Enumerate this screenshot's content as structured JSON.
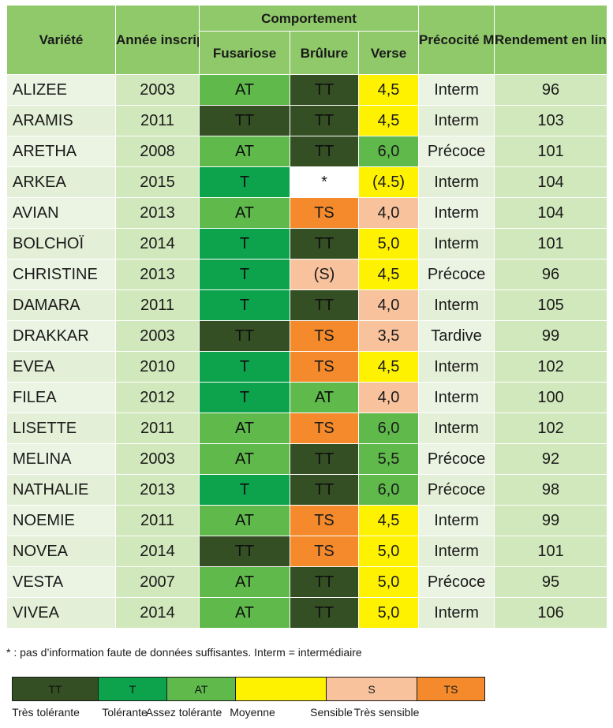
{
  "headers": {
    "variete": "Variété",
    "annee": "Année inscription",
    "comportement": "Comportement",
    "fusariose": "Fusariose",
    "brulure": "Brûlure",
    "verse": "Verse",
    "precocite": "Précocité Maturité",
    "rendement": "Rendement en lin teillé (% moyenne)"
  },
  "rows": [
    {
      "name": "ALIZEE",
      "year": "2003",
      "fus": "AT",
      "fus_c": "AT",
      "bru": "TT",
      "bru_c": "TT",
      "verse": "4,5",
      "verse_c": "M",
      "mat": "Interm",
      "yield": "96"
    },
    {
      "name": "ARAMIS",
      "year": "2011",
      "fus": "TT",
      "fus_c": "TT",
      "bru": "TT",
      "bru_c": "TT",
      "verse": "4,5",
      "verse_c": "M",
      "mat": "Interm",
      "yield": "103"
    },
    {
      "name": "ARETHA",
      "year": "2008",
      "fus": "AT",
      "fus_c": "AT",
      "bru": "TT",
      "bru_c": "TT",
      "verse": "6,0",
      "verse_c": "V",
      "mat": "Précoce",
      "yield": "101"
    },
    {
      "name": "ARKEA",
      "year": "2015",
      "fus": "T",
      "fus_c": "T",
      "bru": "*",
      "bru_c": "NA",
      "verse": "(4.5)",
      "verse_c": "M",
      "mat": "Interm",
      "yield": "104"
    },
    {
      "name": "AVIAN",
      "year": "2013",
      "fus": "AT",
      "fus_c": "AT",
      "bru": "TS",
      "bru_c": "TS",
      "verse": "4,0",
      "verse_c": "S",
      "mat": "Interm",
      "yield": "104"
    },
    {
      "name": "BOLCHOÏ",
      "year": "2014",
      "fus": "T",
      "fus_c": "T",
      "bru": "TT",
      "bru_c": "TT",
      "verse": "5,0",
      "verse_c": "M",
      "mat": "Interm",
      "yield": "101"
    },
    {
      "name": "CHRISTINE",
      "year": "2013",
      "fus": "T",
      "fus_c": "T",
      "bru": "(S)",
      "bru_c": "S",
      "verse": "4,5",
      "verse_c": "M",
      "mat": "Précoce",
      "yield": "96"
    },
    {
      "name": "DAMARA",
      "year": "2011",
      "fus": "T",
      "fus_c": "T",
      "bru": "TT",
      "bru_c": "TT",
      "verse": "4,0",
      "verse_c": "S",
      "mat": "Interm",
      "yield": "105"
    },
    {
      "name": "DRAKKAR",
      "year": "2003",
      "fus": "TT",
      "fus_c": "TT",
      "bru": "TS",
      "bru_c": "TS",
      "verse": "3,5",
      "verse_c": "S",
      "mat": "Tardive",
      "yield": "99"
    },
    {
      "name": "EVEA",
      "year": "2010",
      "fus": "T",
      "fus_c": "T",
      "bru": "TS",
      "bru_c": "TS",
      "verse": "4,5",
      "verse_c": "M",
      "mat": "Interm",
      "yield": "102"
    },
    {
      "name": "FILEA",
      "year": "2012",
      "fus": "T",
      "fus_c": "T",
      "bru": "AT",
      "bru_c": "AT",
      "verse": "4,0",
      "verse_c": "S",
      "mat": "Interm",
      "yield": "100"
    },
    {
      "name": "LISETTE",
      "year": "2011",
      "fus": "AT",
      "fus_c": "AT",
      "bru": "TS",
      "bru_c": "TS",
      "verse": "6,0",
      "verse_c": "V",
      "mat": "Interm",
      "yield": "102"
    },
    {
      "name": "MELINA",
      "year": "2003",
      "fus": "AT",
      "fus_c": "AT",
      "bru": "TT",
      "bru_c": "TT",
      "verse": "5,5",
      "verse_c": "V",
      "mat": "Précoce",
      "yield": "92"
    },
    {
      "name": "NATHALIE",
      "year": "2013",
      "fus": "T",
      "fus_c": "T",
      "bru": "TT",
      "bru_c": "TT",
      "verse": "6,0",
      "verse_c": "V",
      "mat": "Précoce",
      "yield": "98"
    },
    {
      "name": "NOEMIE",
      "year": "2011",
      "fus": "AT",
      "fus_c": "AT",
      "bru": "TS",
      "bru_c": "TS",
      "verse": "4,5",
      "verse_c": "M",
      "mat": "Interm",
      "yield": "99"
    },
    {
      "name": "NOVEA",
      "year": "2014",
      "fus": "TT",
      "fus_c": "TT",
      "bru": "TS",
      "bru_c": "TS",
      "verse": "5,0",
      "verse_c": "M",
      "mat": "Interm",
      "yield": "101"
    },
    {
      "name": "VESTA",
      "year": "2007",
      "fus": "AT",
      "fus_c": "AT",
      "bru": "TT",
      "bru_c": "TT",
      "verse": "5,0",
      "verse_c": "M",
      "mat": "Précoce",
      "yield": "95"
    },
    {
      "name": "VIVEA",
      "year": "2014",
      "fus": "AT",
      "fus_c": "AT",
      "bru": "TT",
      "bru_c": "TT",
      "verse": "5,0",
      "verse_c": "M",
      "mat": "Interm",
      "yield": "106"
    }
  ],
  "footnote": "* : pas d’information faute de données suffisantes. Interm = intermédiaire",
  "legend": [
    {
      "code": "TT",
      "label": "Très tolérante",
      "c": "TT"
    },
    {
      "code": "T",
      "label": "Tolérante",
      "c": "T"
    },
    {
      "code": "AT",
      "label": "Assez tolérante",
      "c": "AT"
    },
    {
      "code": "",
      "label": "Moyenne",
      "c": "M"
    },
    {
      "code": "S",
      "label": "Sensible",
      "c": "S"
    },
    {
      "code": "TS",
      "label": "Très sensible",
      "c": "TS"
    }
  ],
  "colors": {
    "TT": "#354f24",
    "T": "#0da24c",
    "AT": "#5fb94b",
    "M": "#fff200",
    "S": "#f8c29d",
    "TS": "#f48a2b",
    "header": "#8fc96a",
    "cell": "#d1e8bc"
  }
}
